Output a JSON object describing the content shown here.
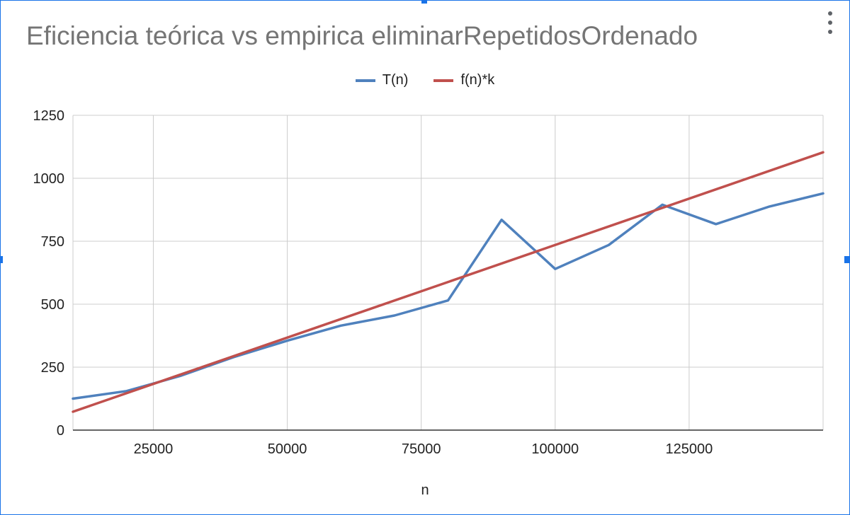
{
  "chart_data": {
    "type": "line",
    "title": "Eficiencia teórica vs empirica eliminarRepetidosOrdenado",
    "xlabel": "n",
    "ylabel": "",
    "xlim": [
      10000,
      150000
    ],
    "ylim": [
      0,
      1250
    ],
    "xticks": [
      25000,
      50000,
      75000,
      100000,
      125000
    ],
    "yticks": [
      0,
      250,
      500,
      750,
      1000,
      1250
    ],
    "grid": true,
    "legend_position": "top",
    "series": [
      {
        "name": "T(n)",
        "color": "#4f81bd",
        "x": [
          10000,
          20000,
          30000,
          40000,
          50000,
          60000,
          70000,
          80000,
          90000,
          100000,
          110000,
          120000,
          130000,
          140000,
          150000
        ],
        "values": [
          125,
          155,
          215,
          290,
          355,
          415,
          455,
          515,
          835,
          640,
          735,
          895,
          818,
          888,
          940
        ]
      },
      {
        "name": "f(n)*k",
        "color": "#c0504d",
        "x": [
          10000,
          150000
        ],
        "values": [
          73,
          1103
        ]
      }
    ]
  },
  "ui": {
    "menu_icon": "more-vert-icon"
  }
}
